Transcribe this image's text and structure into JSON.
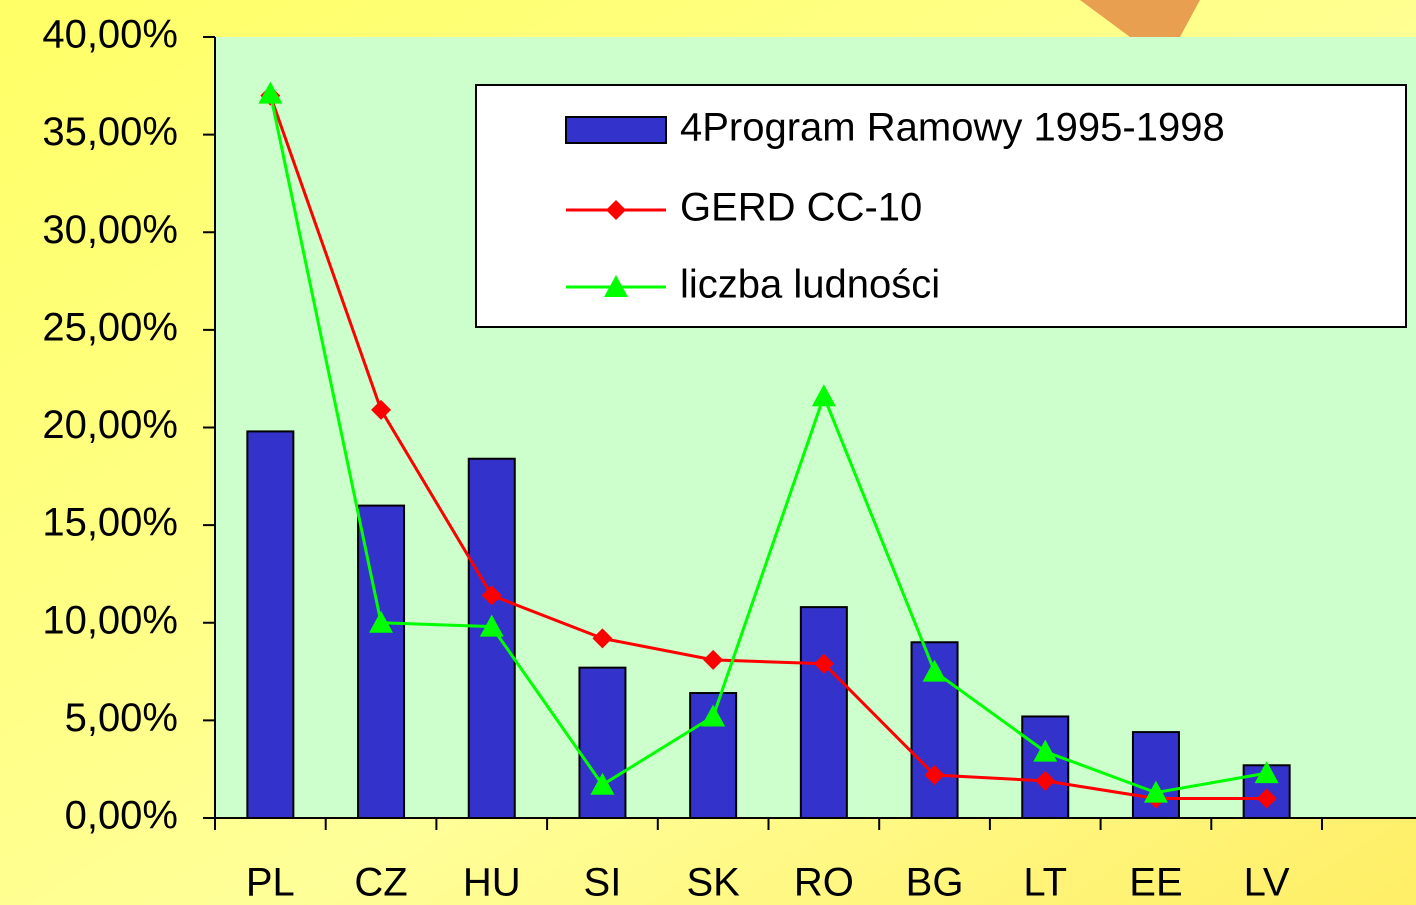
{
  "chart_data": {
    "type": "bar_line",
    "categories": [
      "PL",
      "CZ",
      "HU",
      "SI",
      "SK",
      "RO",
      "BG",
      "LT",
      "EE",
      "LV"
    ],
    "series": [
      {
        "name": "4Program Ramowy 1995-1998",
        "type": "bar",
        "color": "#3333cc",
        "values": [
          19.8,
          16.0,
          18.4,
          7.7,
          6.4,
          10.8,
          9.0,
          5.2,
          4.4,
          2.7
        ]
      },
      {
        "name": "GERD CC-10",
        "type": "line",
        "marker": "diamond",
        "color": "#ff0000",
        "values": [
          37.0,
          20.9,
          11.4,
          9.2,
          8.1,
          7.9,
          2.2,
          1.9,
          1.0,
          1.0
        ]
      },
      {
        "name": "liczba ludności",
        "type": "line",
        "marker": "triangle",
        "color": "#00ff00",
        "values": [
          37.1,
          10.0,
          9.8,
          1.7,
          5.2,
          21.6,
          7.5,
          3.4,
          1.3,
          2.3
        ]
      }
    ],
    "ylim": [
      0,
      40
    ],
    "yticks": [
      {
        "value": 0,
        "label": "0,00%"
      },
      {
        "value": 5,
        "label": "5,00%"
      },
      {
        "value": 10,
        "label": "10,00%"
      },
      {
        "value": 15,
        "label": "15,00%"
      },
      {
        "value": 20,
        "label": "20,00%"
      },
      {
        "value": 25,
        "label": "25,00%"
      },
      {
        "value": 30,
        "label": "30,00%"
      },
      {
        "value": 35,
        "label": "35,00%"
      },
      {
        "value": 40,
        "label": "40,00%"
      }
    ],
    "legend": "upper right"
  }
}
